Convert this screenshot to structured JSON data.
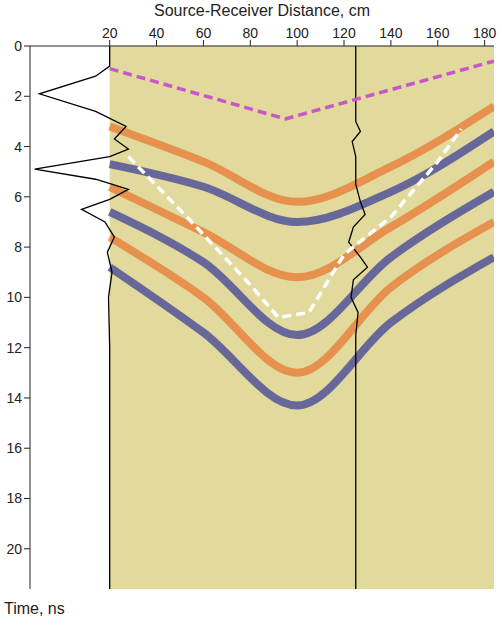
{
  "chart_data": {
    "type": "line",
    "x_label": "Source-Receiver Distance, cm",
    "y_label": "Time, ns",
    "xlim": [
      -14,
      184
    ],
    "xticks": [
      20,
      40,
      60,
      80,
      100,
      120,
      140,
      160,
      180
    ],
    "ylim": [
      21.6,
      0
    ],
    "yticks": [
      0,
      2,
      4,
      6,
      8,
      10,
      12,
      14,
      16,
      18,
      20
    ],
    "grid": false,
    "background": {
      "x": [
        20,
        184
      ],
      "color": "#e2d99c"
    },
    "series": [
      {
        "type": "band",
        "color": "#e8732e",
        "x": [
          20,
          60,
          100,
          140,
          184
        ],
        "values": [
          3.2,
          4.6,
          6.2,
          4.8,
          2.4
        ]
      },
      {
        "type": "band",
        "color": "#34369a",
        "x": [
          20,
          60,
          100,
          140,
          184
        ],
        "values": [
          4.7,
          5.6,
          7.0,
          5.8,
          3.4
        ]
      },
      {
        "type": "band",
        "color": "#e8732e",
        "x": [
          20,
          60,
          100,
          140,
          184
        ],
        "values": [
          5.6,
          7.4,
          9.2,
          7.2,
          4.6
        ]
      },
      {
        "type": "band",
        "color": "#34369a",
        "x": [
          20,
          60,
          100,
          140,
          184
        ],
        "values": [
          6.6,
          8.6,
          11.5,
          8.4,
          5.8
        ]
      },
      {
        "type": "band",
        "color": "#e8732e",
        "x": [
          20,
          60,
          100,
          140,
          184
        ],
        "values": [
          7.6,
          10.0,
          13.0,
          9.6,
          7.0
        ]
      },
      {
        "type": "band",
        "color": "#34369a",
        "x": [
          20,
          60,
          100,
          140,
          184
        ],
        "values": [
          8.8,
          11.4,
          14.3,
          11.0,
          8.4
        ]
      },
      {
        "type": "line",
        "line_style": "solid",
        "color": "#000000",
        "x": [
          20,
          20,
          14,
          -10,
          14,
          27,
          22,
          28,
          20,
          -12,
          14,
          28,
          20,
          8,
          18,
          22,
          19,
          21,
          19.5,
          20,
          20
        ],
        "values": [
          0,
          0.8,
          1.2,
          1.9,
          2.6,
          3.2,
          3.7,
          4.1,
          4.4,
          4.9,
          5.3,
          5.7,
          6.1,
          6.5,
          7.0,
          7.6,
          8.2,
          9.0,
          10.0,
          12.0,
          21.6
        ]
      },
      {
        "type": "line",
        "line_style": "solid",
        "color": "#000000",
        "x": [
          125,
          125,
          127,
          123.5,
          125,
          125,
          127,
          129,
          124,
          122,
          127,
          130,
          124,
          123,
          126,
          125,
          125
        ],
        "values": [
          0,
          3.0,
          3.4,
          3.8,
          4.4,
          5.5,
          6.2,
          6.7,
          7.2,
          7.8,
          8.4,
          8.8,
          9.3,
          10.0,
          10.6,
          11.5,
          21.6
        ]
      },
      {
        "type": "line",
        "line_style": "dashed",
        "color": "#c957c9",
        "x": [
          20,
          95,
          184
        ],
        "values": [
          0.9,
          2.9,
          0.6
        ]
      },
      {
        "type": "line",
        "line_style": "dashed",
        "color": "#ffffff",
        "x": [
          28,
          55,
          80,
          92,
          105,
          120,
          140,
          160,
          170
        ],
        "values": [
          4.4,
          7.0,
          9.5,
          10.8,
          10.6,
          8.3,
          6.8,
          4.6,
          3.3
        ]
      }
    ]
  }
}
